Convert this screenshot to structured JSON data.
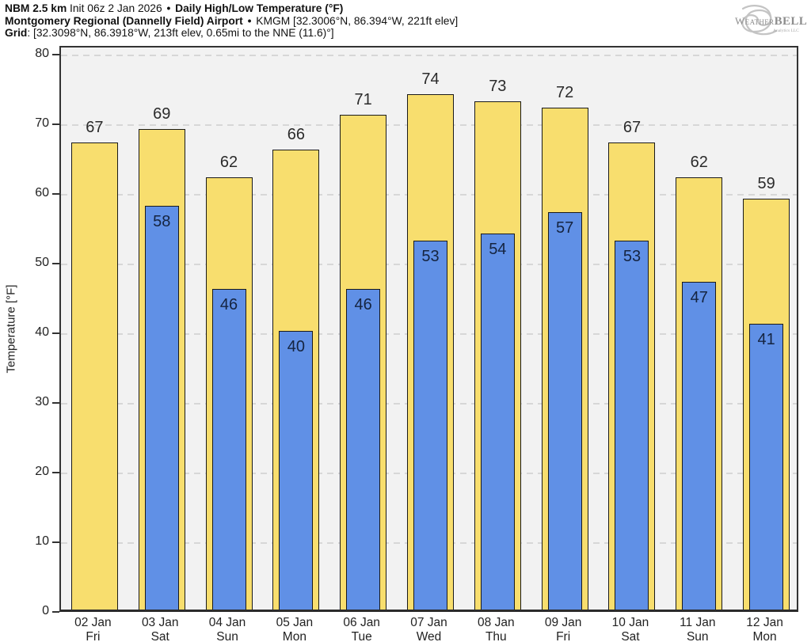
{
  "header": {
    "line1": {
      "model": "NBM 2.5 km",
      "init": " Init 06z 2 Jan 2026 ",
      "sep": "•",
      "title": " Daily High/Low Temperature (°F)"
    },
    "line2": {
      "station": "Montgomery Regional (Dannelly Field) Airport",
      "sep": "•",
      "details": " KMGM [32.3006°N, 86.394°W, 221ft elev]"
    },
    "line3": {
      "label": "Grid",
      "details": ": [32.3098°N, 86.3918°W, 213ft elev, 0.65mi to the NNE (11.6)°]"
    }
  },
  "logo": {
    "text_weather": "Weather",
    "text_bell": "BELL",
    "subtext": "Analytics LLC"
  },
  "chart_data": {
    "type": "bar",
    "title": "Daily High/Low Temperature (°F)",
    "xlabel": "",
    "ylabel": "Temperature [°F]",
    "ylim": [
      0,
      80
    ],
    "yticks": [
      0,
      10,
      20,
      30,
      40,
      50,
      60,
      70,
      80
    ],
    "grid": "dashed horizontal gridlines every 10°F",
    "legend_position": "none",
    "categories": [
      {
        "date": "02 Jan",
        "day": "Fri"
      },
      {
        "date": "03 Jan",
        "day": "Sat"
      },
      {
        "date": "04 Jan",
        "day": "Sun"
      },
      {
        "date": "05 Jan",
        "day": "Mon"
      },
      {
        "date": "06 Jan",
        "day": "Tue"
      },
      {
        "date": "07 Jan",
        "day": "Wed"
      },
      {
        "date": "08 Jan",
        "day": "Thu"
      },
      {
        "date": "09 Jan",
        "day": "Fri"
      },
      {
        "date": "10 Jan",
        "day": "Sat"
      },
      {
        "date": "11 Jan",
        "day": "Sun"
      },
      {
        "date": "12 Jan",
        "day": "Mon"
      }
    ],
    "series": [
      {
        "name": "Daily High",
        "color": "#f8de6e",
        "values": [
          67,
          69,
          62,
          66,
          71,
          74,
          73,
          72,
          67,
          62,
          59
        ]
      },
      {
        "name": "Daily Low",
        "color": "#6090e6",
        "values": [
          null,
          58,
          46,
          40,
          46,
          53,
          54,
          57,
          53,
          47,
          41
        ]
      }
    ]
  },
  "colors": {
    "background": "#ffffff",
    "plot_background": "#f2f2f2",
    "gridline": "#d7d7d7",
    "axis": "#333333",
    "bar_border": "#1a1a1a",
    "high_fill": "#f8de6e",
    "low_fill": "#6090e6",
    "high_label_text": "#2b2b2b",
    "low_label_text": "#152440",
    "logo_gray": "#999999"
  }
}
